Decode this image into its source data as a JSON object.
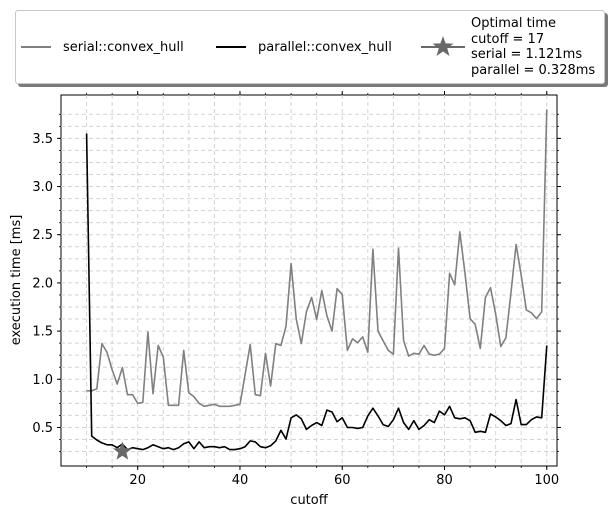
{
  "legend": {
    "serial_label": "serial::convex_hull",
    "parallel_label": "parallel::convex_hull",
    "optimal_text": "Optimal time\ncutoff = 17\nserial = 1.121ms\nparallel = 0.328ms"
  },
  "chart_data": {
    "type": "line",
    "xlabel": "cutoff",
    "ylabel": "execution time [ms]",
    "xlim": [
      5,
      102
    ],
    "ylim": [
      0.1,
      3.95
    ],
    "x_ticks": [
      20,
      40,
      60,
      80,
      100
    ],
    "y_ticks": [
      0.5,
      1.0,
      1.5,
      2.0,
      2.5,
      3.0,
      3.5
    ],
    "x_tick_labels": [
      "20",
      "40",
      "60",
      "80",
      "100"
    ],
    "y_tick_labels": [
      "0.5",
      "1.0",
      "1.5",
      "2.0",
      "2.5",
      "3.0",
      "3.5"
    ],
    "grid": true,
    "legend_position": "top, outside plot",
    "x": [
      10,
      11,
      12,
      13,
      14,
      15,
      16,
      17,
      18,
      19,
      20,
      21,
      22,
      23,
      24,
      25,
      26,
      27,
      28,
      29,
      30,
      31,
      32,
      33,
      34,
      35,
      36,
      37,
      38,
      39,
      40,
      41,
      42,
      43,
      44,
      45,
      46,
      47,
      48,
      49,
      50,
      51,
      52,
      53,
      54,
      55,
      56,
      57,
      58,
      59,
      60,
      61,
      62,
      63,
      64,
      65,
      66,
      67,
      68,
      69,
      70,
      71,
      72,
      73,
      74,
      75,
      76,
      77,
      78,
      79,
      80,
      81,
      82,
      83,
      84,
      85,
      86,
      87,
      88,
      89,
      90,
      91,
      92,
      93,
      94,
      95,
      96,
      97,
      98,
      99,
      100
    ],
    "series": [
      {
        "name": "serial::convex_hull",
        "color": "#808080",
        "values": [
          0.88,
          0.88,
          0.9,
          1.37,
          1.28,
          1.1,
          0.95,
          1.121,
          0.84,
          0.84,
          0.75,
          0.76,
          1.49,
          0.85,
          1.35,
          1.23,
          0.73,
          0.73,
          0.73,
          1.3,
          0.86,
          0.82,
          0.75,
          0.72,
          0.73,
          0.74,
          0.72,
          0.72,
          0.72,
          0.73,
          0.74,
          1.05,
          1.36,
          0.84,
          0.83,
          1.27,
          0.93,
          1.37,
          1.35,
          1.55,
          2.2,
          1.63,
          1.37,
          1.7,
          1.85,
          1.62,
          1.92,
          1.66,
          1.5,
          1.94,
          1.88,
          1.3,
          1.42,
          1.38,
          1.44,
          1.28,
          2.35,
          1.5,
          1.4,
          1.3,
          1.26,
          2.36,
          1.4,
          1.24,
          1.27,
          1.26,
          1.35,
          1.26,
          1.25,
          1.26,
          1.32,
          2.1,
          1.98,
          2.53,
          2.1,
          1.63,
          1.57,
          1.32,
          1.85,
          1.95,
          1.68,
          1.34,
          1.43,
          1.9,
          2.4,
          2.08,
          1.72,
          1.69,
          1.63,
          1.7,
          3.8
        ]
      },
      {
        "name": "parallel::convex_hull",
        "color": "#000000",
        "values": [
          3.55,
          0.41,
          0.37,
          0.34,
          0.32,
          0.32,
          0.29,
          0.328,
          0.27,
          0.29,
          0.28,
          0.27,
          0.29,
          0.32,
          0.3,
          0.28,
          0.29,
          0.27,
          0.29,
          0.33,
          0.35,
          0.28,
          0.35,
          0.29,
          0.3,
          0.3,
          0.29,
          0.3,
          0.27,
          0.27,
          0.28,
          0.3,
          0.36,
          0.35,
          0.3,
          0.29,
          0.31,
          0.36,
          0.47,
          0.38,
          0.6,
          0.63,
          0.59,
          0.48,
          0.52,
          0.55,
          0.52,
          0.68,
          0.66,
          0.56,
          0.6,
          0.5,
          0.5,
          0.49,
          0.5,
          0.62,
          0.7,
          0.62,
          0.53,
          0.51,
          0.58,
          0.7,
          0.55,
          0.48,
          0.57,
          0.48,
          0.52,
          0.58,
          0.55,
          0.67,
          0.63,
          0.72,
          0.6,
          0.59,
          0.6,
          0.57,
          0.45,
          0.46,
          0.45,
          0.64,
          0.61,
          0.57,
          0.52,
          0.54,
          0.79,
          0.53,
          0.53,
          0.58,
          0.61,
          0.6,
          1.35
        ]
      }
    ],
    "optimal_marker": {
      "x": 17,
      "y": 0.25,
      "color": "#696969"
    }
  }
}
